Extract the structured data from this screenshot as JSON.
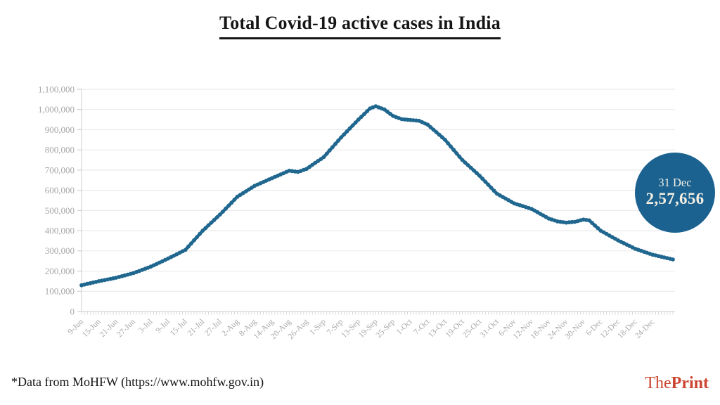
{
  "title": "Total Covid-19 active cases in India",
  "footnote": "*Data from MoHFW (https://www.mohfw.gov.in)",
  "brand": {
    "part1": "The",
    "part2": "Print",
    "color": "#cc4430"
  },
  "callout": {
    "date": "31 Dec",
    "value": "2,57,656",
    "bg": "#1b6290",
    "text_color": "#f4efe2"
  },
  "colors": {
    "line": "#20678f",
    "grid": "#ebebeb",
    "axis": "#d6d6d6",
    "tick": "#cfcfcf",
    "tick_label": "#a8a8a8"
  },
  "chart_data": {
    "type": "line",
    "title": "Total Covid-19 active cases in India",
    "xlabel": "",
    "ylabel": "",
    "grid": true,
    "marker": "dot",
    "ylim": [
      0,
      1100000
    ],
    "y_ticks": [
      0,
      100000,
      200000,
      300000,
      400000,
      500000,
      600000,
      700000,
      800000,
      900000,
      1000000,
      1100000
    ],
    "y_tick_labels": [
      "0",
      "100,000",
      "200,000",
      "300,000",
      "400,000",
      "500,000",
      "600,000",
      "700,000",
      "800,000",
      "900,000",
      "1,000,000",
      "1,100,000"
    ],
    "x_tick_interval_days": 6,
    "x_tick_labels": [
      "9-Jun",
      "15-Jun",
      "21-Jun",
      "27-Jun",
      "3-Jul",
      "9-Jul",
      "15-Jul",
      "21-Jul",
      "27-Jul",
      "2-Aug",
      "8-Aug",
      "14-Aug",
      "20-Aug",
      "26-Aug",
      "1-Sep",
      "7-Sep",
      "13-Sep",
      "19-Sep",
      "25-Sep",
      "1-Oct",
      "7-Oct",
      "13-Oct",
      "19-Oct",
      "25-Oct",
      "31-Oct",
      "6-Nov",
      "12-Nov",
      "18-Nov",
      "24-Nov",
      "30-Nov",
      "6-Dec",
      "12-Dec",
      "18-Dec",
      "24-Dec"
    ],
    "series_name": "Active cases",
    "points": [
      {
        "date": "9-Jun",
        "day": 0,
        "value": 130000
      },
      {
        "date": "15-Jun",
        "day": 6,
        "value": 150000
      },
      {
        "date": "21-Jun",
        "day": 12,
        "value": 167000
      },
      {
        "date": "27-Jun",
        "day": 18,
        "value": 190000
      },
      {
        "date": "3-Jul",
        "day": 24,
        "value": 222000
      },
      {
        "date": "9-Jul",
        "day": 30,
        "value": 262000
      },
      {
        "date": "15-Jul",
        "day": 36,
        "value": 305000
      },
      {
        "date": "21-Jul",
        "day": 42,
        "value": 400000
      },
      {
        "date": "27-Jul",
        "day": 48,
        "value": 480000
      },
      {
        "date": "2-Aug",
        "day": 54,
        "value": 568000
      },
      {
        "date": "8-Aug",
        "day": 60,
        "value": 622000
      },
      {
        "date": "14-Aug",
        "day": 66,
        "value": 660000
      },
      {
        "date": "20-Aug",
        "day": 72,
        "value": 697000
      },
      {
        "date": "23-Aug",
        "day": 75,
        "value": 691000
      },
      {
        "date": "26-Aug",
        "day": 78,
        "value": 706000
      },
      {
        "date": "1-Sep",
        "day": 84,
        "value": 765000
      },
      {
        "date": "7-Sep",
        "day": 90,
        "value": 862000
      },
      {
        "date": "13-Sep",
        "day": 96,
        "value": 950000
      },
      {
        "date": "17-Sep",
        "day": 100,
        "value": 1005000
      },
      {
        "date": "19-Sep",
        "day": 102,
        "value": 1016000
      },
      {
        "date": "22-Sep",
        "day": 105,
        "value": 1000000
      },
      {
        "date": "25-Sep",
        "day": 108,
        "value": 968000
      },
      {
        "date": "28-Sep",
        "day": 111,
        "value": 952000
      },
      {
        "date": "1-Oct",
        "day": 114,
        "value": 948000
      },
      {
        "date": "4-Oct",
        "day": 117,
        "value": 944000
      },
      {
        "date": "7-Oct",
        "day": 120,
        "value": 925000
      },
      {
        "date": "13-Oct",
        "day": 126,
        "value": 850000
      },
      {
        "date": "19-Oct",
        "day": 132,
        "value": 750000
      },
      {
        "date": "25-Oct",
        "day": 138,
        "value": 672000
      },
      {
        "date": "31-Oct",
        "day": 144,
        "value": 583000
      },
      {
        "date": "6-Nov",
        "day": 150,
        "value": 535000
      },
      {
        "date": "12-Nov",
        "day": 156,
        "value": 508000
      },
      {
        "date": "18-Nov",
        "day": 162,
        "value": 460000
      },
      {
        "date": "21-Nov",
        "day": 165,
        "value": 446000
      },
      {
        "date": "24-Nov",
        "day": 168,
        "value": 440000
      },
      {
        "date": "27-Nov",
        "day": 171,
        "value": 444000
      },
      {
        "date": "30-Nov",
        "day": 174,
        "value": 455000
      },
      {
        "date": "2-Dec",
        "day": 176,
        "value": 451000
      },
      {
        "date": "6-Dec",
        "day": 180,
        "value": 400000
      },
      {
        "date": "12-Dec",
        "day": 186,
        "value": 352000
      },
      {
        "date": "18-Dec",
        "day": 192,
        "value": 310000
      },
      {
        "date": "24-Dec",
        "day": 198,
        "value": 281000
      },
      {
        "date": "31-Dec",
        "day": 205,
        "value": 257656
      }
    ],
    "annotation": {
      "label": "31 Dec",
      "value_text": "2,57,656",
      "value": 257656
    }
  }
}
